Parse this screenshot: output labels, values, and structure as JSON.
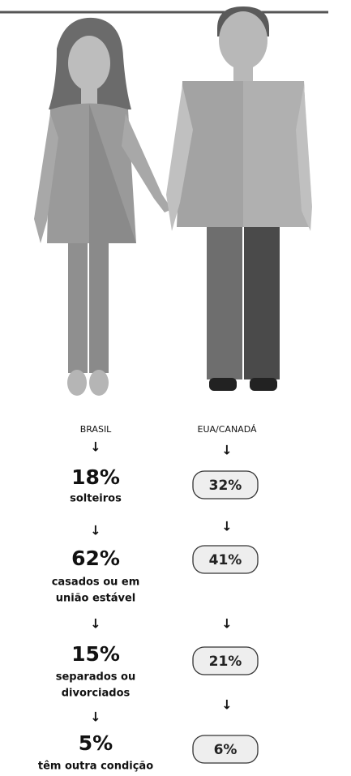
{
  "brasil": {
    "heading": "BRASIL",
    "items": [
      {
        "value": "18%",
        "label": [
          "solteiros"
        ]
      },
      {
        "value": "62%",
        "label": [
          "casados ou em",
          "união estável"
        ]
      },
      {
        "value": "15%",
        "label": [
          "separados ou",
          "divorciados"
        ]
      },
      {
        "value": "5%",
        "label": [
          "têm outra condição"
        ]
      }
    ]
  },
  "eua_canada": {
    "heading": "EUA/CANADÁ",
    "values": [
      "32%",
      "41%",
      "21%",
      "6%"
    ]
  }
}
